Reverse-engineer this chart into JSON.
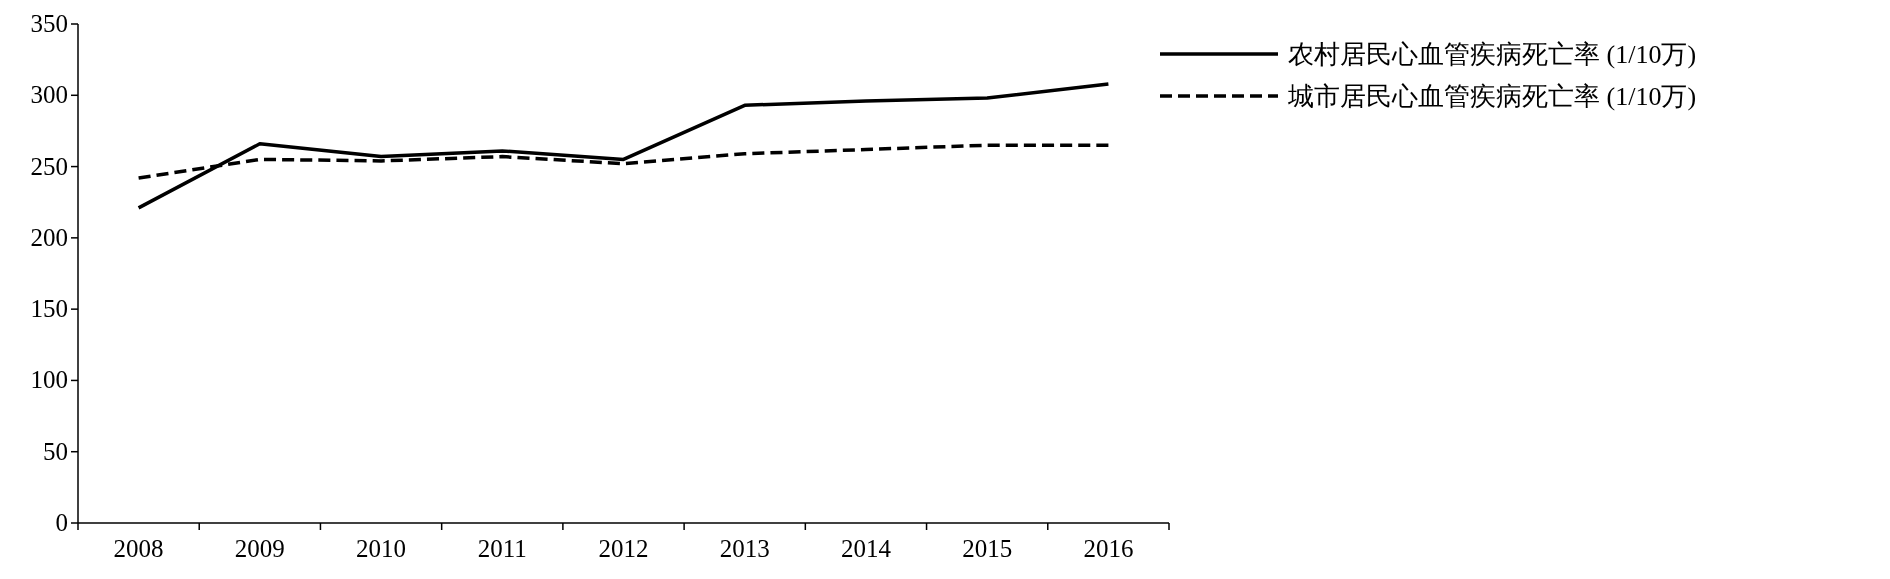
{
  "chart_data": {
    "type": "line",
    "categories": [
      "2008",
      "2009",
      "2010",
      "2011",
      "2012",
      "2013",
      "2014",
      "2015",
      "2016"
    ],
    "series": [
      {
        "name": "农村居民心血管疾病死亡率 (1/10万)",
        "color": "#000000",
        "line_style": "solid",
        "values": [
          221,
          266,
          257,
          261,
          255,
          293,
          296,
          298,
          308
        ]
      },
      {
        "name": "城市居民心血管疾病死亡率 (1/10万)",
        "color": "#000000",
        "line_style": "dashed",
        "values": [
          242,
          255,
          254,
          257,
          252,
          259,
          262,
          265,
          265
        ]
      }
    ],
    "ylim": [
      0,
      350
    ],
    "yticks": [
      0,
      50,
      100,
      150,
      200,
      250,
      300,
      350
    ],
    "grid": false,
    "legend": "right",
    "marker": "none"
  }
}
